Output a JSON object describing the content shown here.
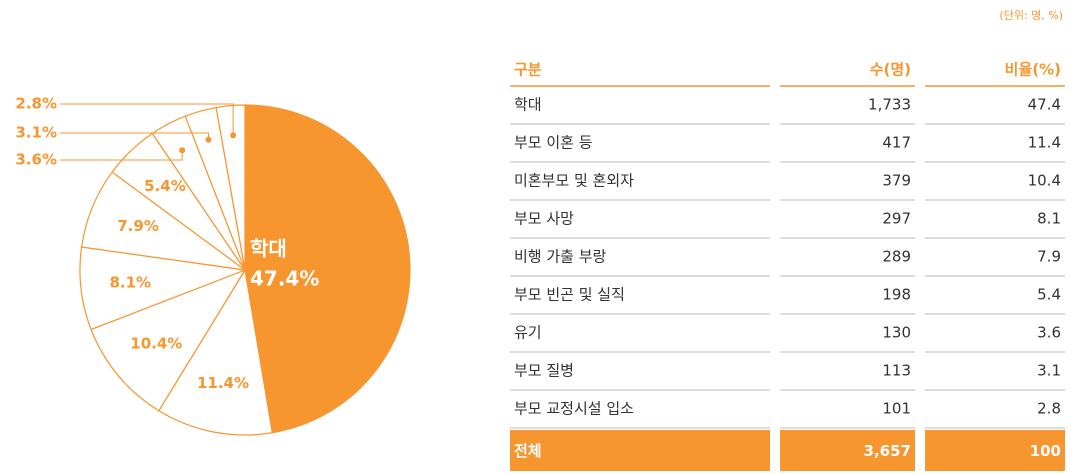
{
  "unit": "(단위: 명, %)",
  "chart_data": {
    "type": "pie",
    "center_label": "학대",
    "values": [
      47.4,
      11.4,
      10.4,
      8.1,
      7.9,
      5.4,
      3.6,
      3.1,
      2.8
    ],
    "value_labels": [
      "47.4%",
      "11.4%",
      "10.4%",
      "8.1%",
      "7.9%",
      "5.4%",
      "3.6%",
      "3.1%",
      "2.8%"
    ],
    "color": "#f7962f"
  },
  "table": {
    "header": [
      "구분",
      "수(명)",
      "비율(%)"
    ],
    "rows": [
      [
        "학대",
        "1,733",
        "47.4"
      ],
      [
        "부모 이혼 등",
        "417",
        "11.4"
      ],
      [
        "미혼부모 및 혼외자",
        "379",
        "10.4"
      ],
      [
        "부모 사망",
        "297",
        "8.1"
      ],
      [
        "비행 가출 부랑",
        "289",
        "7.9"
      ],
      [
        "부모 빈곤 및 실직",
        "198",
        "5.4"
      ],
      [
        "유기",
        "130",
        "3.6"
      ],
      [
        "부모 질병",
        "113",
        "3.1"
      ],
      [
        "부모 교정시설 입소",
        "101",
        "2.8"
      ]
    ],
    "total": [
      "전체",
      "3,657",
      "100"
    ]
  }
}
